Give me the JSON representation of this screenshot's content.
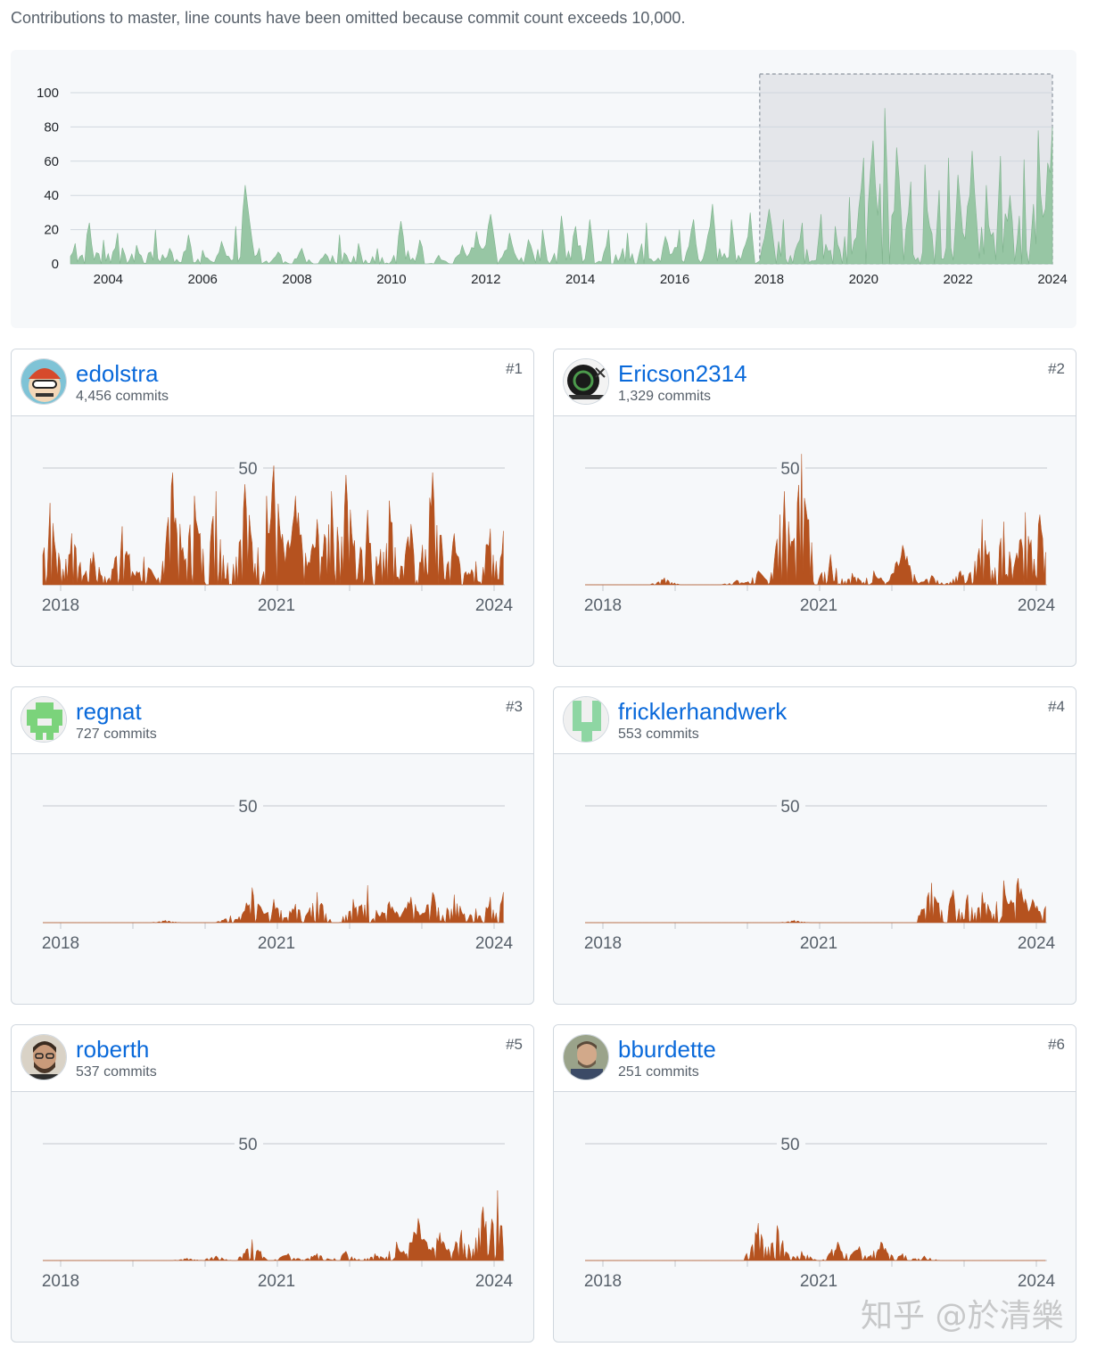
{
  "caption": "Contributions to master, line counts have been omitted because commit count exceeds 10,000.",
  "colors": {
    "overview_fill": "#97c6a4",
    "overview_stroke": "#7fb38d",
    "contributor_fill": "#b5521f",
    "link": "#0969da",
    "selection": "#e4e6ea"
  },
  "chart_data": [
    {
      "type": "area",
      "y_ticks": [
        "100",
        "80",
        "60",
        "40",
        "20",
        "0"
      ],
      "x_ticks": [
        "2004",
        "2006",
        "2008",
        "2010",
        "2012",
        "2014",
        "2016",
        "2018",
        "2020",
        "2022",
        "2024"
      ],
      "ylim": [
        0,
        100
      ],
      "xlim": [
        2003.2,
        2024.0
      ],
      "grid": true,
      "selection_range": [
        2017.8,
        2024.1
      ],
      "peaks": [
        [
          2003.3,
          12
        ],
        [
          2003.6,
          24
        ],
        [
          2003.9,
          14
        ],
        [
          2004.2,
          18
        ],
        [
          2004.6,
          11
        ],
        [
          2005.0,
          20
        ],
        [
          2005.3,
          9
        ],
        [
          2005.7,
          17
        ],
        [
          2006.0,
          8
        ],
        [
          2006.4,
          13
        ],
        [
          2006.7,
          22
        ],
        [
          2006.9,
          46
        ],
        [
          2007.2,
          9
        ],
        [
          2007.6,
          7
        ],
        [
          2008.1,
          9
        ],
        [
          2008.6,
          6
        ],
        [
          2008.9,
          17
        ],
        [
          2009.3,
          12
        ],
        [
          2009.7,
          9
        ],
        [
          2010.2,
          25
        ],
        [
          2010.6,
          14
        ],
        [
          2011.0,
          5
        ],
        [
          2011.5,
          11
        ],
        [
          2011.8,
          19
        ],
        [
          2012.1,
          29
        ],
        [
          2012.5,
          18
        ],
        [
          2012.9,
          14
        ],
        [
          2013.2,
          20
        ],
        [
          2013.6,
          28
        ],
        [
          2013.9,
          22
        ],
        [
          2014.2,
          26
        ],
        [
          2014.6,
          20
        ],
        [
          2015.0,
          18
        ],
        [
          2015.4,
          24
        ],
        [
          2015.8,
          16
        ],
        [
          2016.1,
          20
        ],
        [
          2016.4,
          26
        ],
        [
          2016.8,
          35
        ],
        [
          2017.2,
          26
        ],
        [
          2017.6,
          30
        ],
        [
          2018.0,
          32
        ],
        [
          2018.3,
          26
        ],
        [
          2018.7,
          24
        ],
        [
          2019.1,
          29
        ],
        [
          2019.4,
          22
        ],
        [
          2019.7,
          39
        ],
        [
          2020.0,
          62
        ],
        [
          2020.2,
          72
        ],
        [
          2020.45,
          91
        ],
        [
          2020.7,
          68
        ],
        [
          2021.0,
          48
        ],
        [
          2021.3,
          58
        ],
        [
          2021.6,
          43
        ],
        [
          2021.8,
          62
        ],
        [
          2022.0,
          52
        ],
        [
          2022.3,
          66
        ],
        [
          2022.6,
          46
        ],
        [
          2022.9,
          63
        ],
        [
          2023.1,
          40
        ],
        [
          2023.4,
          61
        ],
        [
          2023.7,
          78
        ],
        [
          2023.9,
          59
        ],
        [
          2024.0,
          80
        ]
      ]
    },
    {
      "type": "area",
      "login": "edolstra",
      "commits": "4,456 commits",
      "rank": "#1",
      "y_tick": "50",
      "x_ticks": [
        "2018",
        "2021",
        "2024"
      ],
      "peaks": [
        [
          2017.9,
          35
        ],
        [
          2018.2,
          22
        ],
        [
          2018.5,
          14
        ],
        [
          2018.9,
          25
        ],
        [
          2019.2,
          12
        ],
        [
          2019.6,
          48
        ],
        [
          2019.9,
          38
        ],
        [
          2020.2,
          40
        ],
        [
          2020.6,
          43
        ],
        [
          2020.9,
          38
        ],
        [
          2021.0,
          51
        ],
        [
          2021.3,
          38
        ],
        [
          2021.6,
          28
        ],
        [
          2021.8,
          40
        ],
        [
          2022.0,
          47
        ],
        [
          2022.3,
          32
        ],
        [
          2022.6,
          36
        ],
        [
          2022.9,
          26
        ],
        [
          2023.2,
          48
        ],
        [
          2023.5,
          22
        ],
        [
          2023.8,
          10
        ],
        [
          2024.0,
          24
        ],
        [
          2024.2,
          23
        ]
      ]
    },
    {
      "type": "area",
      "login": "Ericson2314",
      "commits": "1,329 commits",
      "rank": "#2",
      "y_tick": "50",
      "x_ticks": [
        "2018",
        "2021",
        "2024"
      ],
      "peaks": [
        [
          2018.9,
          3
        ],
        [
          2019.9,
          2
        ],
        [
          2020.2,
          6
        ],
        [
          2020.55,
          40
        ],
        [
          2020.8,
          56
        ],
        [
          2021.2,
          13
        ],
        [
          2021.5,
          5
        ],
        [
          2021.8,
          6
        ],
        [
          2022.2,
          17
        ],
        [
          2022.6,
          4
        ],
        [
          2023.0,
          6
        ],
        [
          2023.3,
          28
        ],
        [
          2023.6,
          27
        ],
        [
          2023.9,
          31
        ],
        [
          2024.1,
          30
        ]
      ]
    },
    {
      "type": "area",
      "login": "regnat",
      "commits": "727 commits",
      "rank": "#3",
      "y_tick": "50",
      "x_ticks": [
        "2018",
        "2021",
        "2024"
      ],
      "peaks": [
        [
          2019.5,
          1
        ],
        [
          2020.4,
          3
        ],
        [
          2020.7,
          15
        ],
        [
          2021.0,
          10
        ],
        [
          2021.3,
          8
        ],
        [
          2021.6,
          13
        ],
        [
          2022.1,
          10
        ],
        [
          2022.3,
          16
        ],
        [
          2022.6,
          9
        ],
        [
          2022.9,
          11
        ],
        [
          2023.2,
          13
        ],
        [
          2023.5,
          12
        ],
        [
          2023.8,
          6
        ],
        [
          2024.0,
          11
        ],
        [
          2024.2,
          13
        ]
      ]
    },
    {
      "type": "area",
      "login": "fricklerhandwerk",
      "commits": "553 commits",
      "rank": "#4",
      "y_tick": "50",
      "x_ticks": [
        "2018",
        "2021",
        "2024"
      ],
      "peaks": [
        [
          2020.7,
          1
        ],
        [
          2022.6,
          17
        ],
        [
          2022.9,
          14
        ],
        [
          2023.1,
          12
        ],
        [
          2023.3,
          13
        ],
        [
          2023.6,
          18
        ],
        [
          2023.8,
          19
        ],
        [
          2024.0,
          10
        ],
        [
          2024.2,
          7
        ]
      ]
    },
    {
      "type": "area",
      "login": "roberth",
      "commits": "537 commits",
      "rank": "#5",
      "y_tick": "50",
      "x_ticks": [
        "2018",
        "2021",
        "2024"
      ],
      "peaks": [
        [
          2019.8,
          1
        ],
        [
          2020.2,
          2
        ],
        [
          2020.7,
          9
        ],
        [
          2021.2,
          3
        ],
        [
          2021.6,
          3
        ],
        [
          2022.0,
          4
        ],
        [
          2022.4,
          3
        ],
        [
          2022.7,
          8
        ],
        [
          2023.0,
          18
        ],
        [
          2023.3,
          12
        ],
        [
          2023.6,
          13
        ],
        [
          2023.9,
          23
        ],
        [
          2024.1,
          30
        ]
      ]
    },
    {
      "type": "area",
      "login": "bburdette",
      "commits": "251 commits",
      "rank": "#6",
      "y_tick": "50",
      "x_ticks": [
        "2018",
        "2021",
        "2024"
      ],
      "peaks": [
        [
          2020.2,
          16
        ],
        [
          2020.45,
          15
        ],
        [
          2020.8,
          4
        ],
        [
          2021.3,
          8
        ],
        [
          2021.6,
          6
        ],
        [
          2021.9,
          8
        ],
        [
          2022.2,
          3
        ],
        [
          2022.5,
          2
        ]
      ]
    }
  ],
  "watermark": "知乎 @於清樂"
}
